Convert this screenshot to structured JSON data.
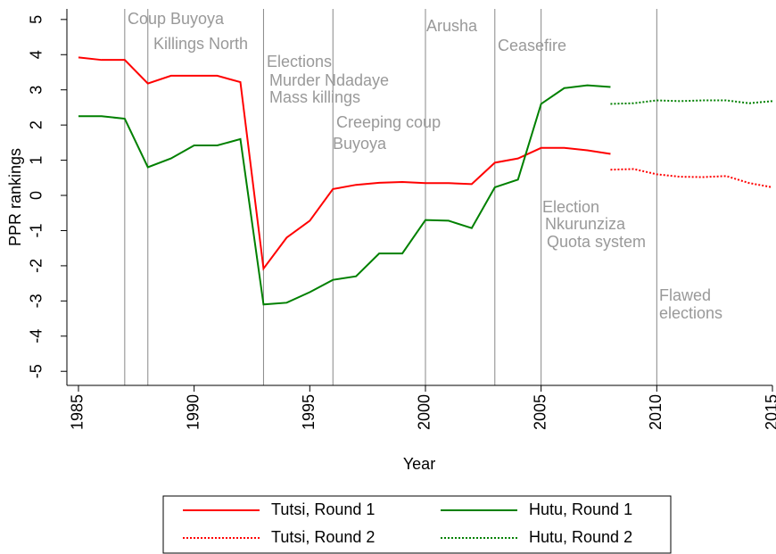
{
  "chart_data": {
    "type": "line",
    "x_label": "Year",
    "y_label": "PPR rankings",
    "xlim": [
      1984.5,
      2015
    ],
    "ylim": [
      -5.4,
      5.3
    ],
    "xticks": [
      1985,
      1990,
      1995,
      2000,
      2005,
      2010,
      2015
    ],
    "yticks": [
      -5,
      -4,
      -3,
      -2,
      -1,
      0,
      1,
      2,
      3,
      4,
      5
    ],
    "event_lines": [
      1987,
      1988,
      1993,
      1996,
      2000,
      2003,
      2005,
      2010
    ],
    "annotations": [
      "Coup Buyoya",
      "Killings North",
      "Elections",
      "Murder Ndadaye",
      "Mass killings",
      "Creeping coup",
      "Buyoya",
      "Arusha",
      "Ceasefire",
      "Election",
      "Nkurunziza",
      "Quota system",
      "Flawed",
      "elections"
    ],
    "series": [
      {
        "name": "Tutsi, Round 1",
        "color": "#ff0000",
        "style": "solid",
        "x": [
          1985,
          1986,
          1987,
          1988,
          1989,
          1990,
          1991,
          1992,
          1993,
          1994,
          1995,
          1996,
          1997,
          1998,
          1999,
          2000,
          2001,
          2002,
          2003,
          2004,
          2005,
          2006,
          2007,
          2008
        ],
        "values": [
          3.92,
          3.85,
          3.85,
          3.18,
          3.4,
          3.4,
          3.4,
          3.22,
          -2.08,
          -1.2,
          -0.72,
          0.18,
          0.3,
          0.36,
          0.38,
          0.35,
          0.35,
          0.32,
          0.93,
          1.05,
          1.35,
          1.35,
          1.28,
          1.18
        ]
      },
      {
        "name": "Hutu, Round 1",
        "color": "#008000",
        "style": "solid",
        "x": [
          1985,
          1986,
          1987,
          1988,
          1989,
          1990,
          1991,
          1992,
          1993,
          1994,
          1995,
          1996,
          1997,
          1998,
          1999,
          2000,
          2001,
          2002,
          2003,
          2004,
          2005,
          2006,
          2007,
          2008
        ],
        "values": [
          2.25,
          2.25,
          2.18,
          0.8,
          1.05,
          1.42,
          1.42,
          1.6,
          -3.1,
          -3.05,
          -2.75,
          -2.4,
          -2.3,
          -1.65,
          -1.65,
          -0.7,
          -0.72,
          -0.93,
          0.23,
          0.45,
          2.6,
          3.05,
          3.13,
          3.08
        ]
      },
      {
        "name": "Tutsi, Round 2",
        "color": "#ff0000",
        "style": "dotted",
        "x": [
          2008,
          2009,
          2010,
          2011,
          2012,
          2013,
          2014,
          2015
        ],
        "values": [
          0.73,
          0.75,
          0.6,
          0.53,
          0.52,
          0.55,
          0.35,
          0.23
        ]
      },
      {
        "name": "Hutu, Round 2",
        "color": "#008000",
        "style": "dotted",
        "x": [
          2008,
          2009,
          2010,
          2011,
          2012,
          2013,
          2014,
          2015
        ],
        "values": [
          2.6,
          2.62,
          2.7,
          2.68,
          2.7,
          2.7,
          2.62,
          2.68
        ]
      }
    ]
  }
}
